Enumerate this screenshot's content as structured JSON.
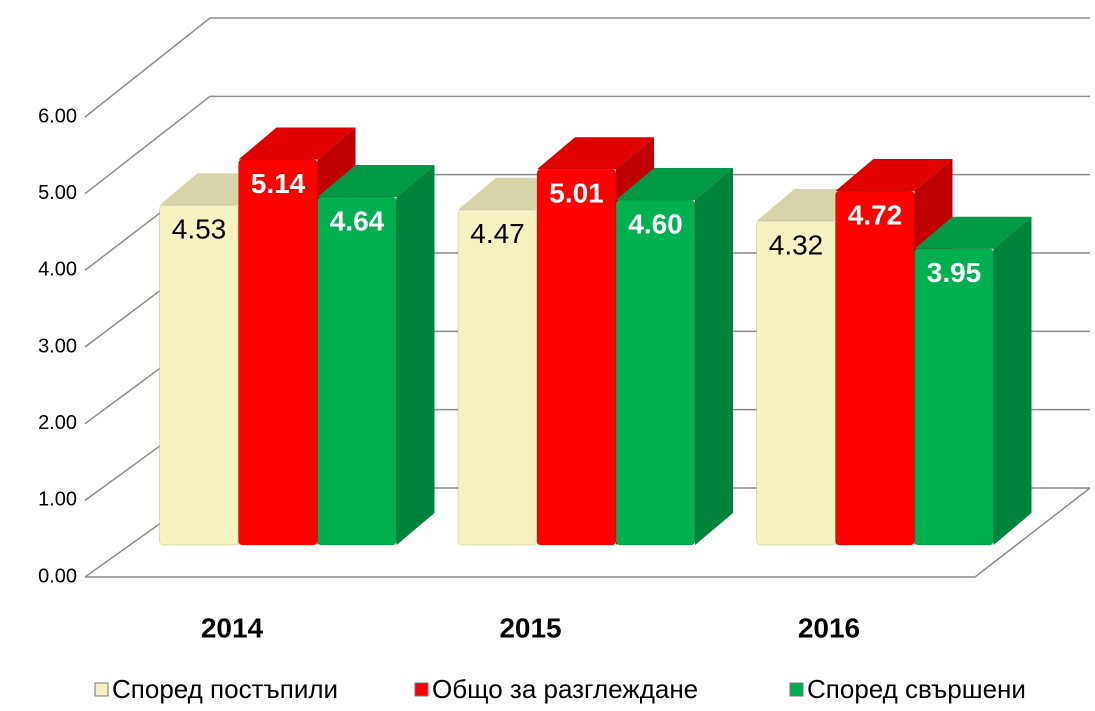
{
  "chart_data": {
    "type": "bar3d",
    "categories": [
      "2014",
      "2015",
      "2016"
    ],
    "series": [
      {
        "name": "Според постъпили",
        "color": "#f6f2c2",
        "values": [
          4.53,
          4.47,
          4.32
        ],
        "value_labels": [
          "4.53",
          "4.47",
          "4.32"
        ]
      },
      {
        "name": "Общо за разглеждане",
        "color": "#ff0000",
        "values": [
          5.14,
          5.01,
          4.72
        ],
        "value_labels": [
          "5.14",
          "5.01",
          "4.72"
        ]
      },
      {
        "name": "Според свършени",
        "color": "#00b050",
        "values": [
          4.64,
          4.6,
          3.95
        ],
        "value_labels": [
          "4.64",
          "4.60",
          "3.95"
        ]
      }
    ],
    "ylim": [
      0,
      6
    ],
    "yticks": [
      {
        "value": 0,
        "label": "0.00"
      },
      {
        "value": 1,
        "label": "1.00"
      },
      {
        "value": 2,
        "label": "2.00"
      },
      {
        "value": 3,
        "label": "3.00"
      },
      {
        "value": 4,
        "label": "4.00"
      },
      {
        "value": 5,
        "label": "5.00"
      },
      {
        "value": 6,
        "label": "6.00"
      }
    ],
    "grid": true,
    "legend": "bottom"
  }
}
